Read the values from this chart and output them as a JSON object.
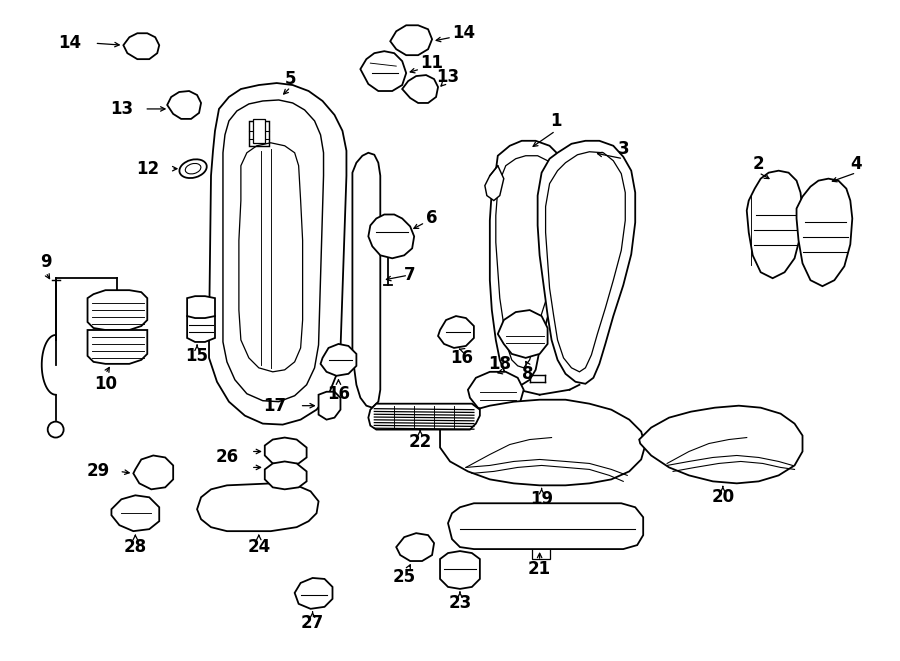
{
  "background_color": "#ffffff",
  "line_color": "#000000",
  "fig_width": 9.0,
  "fig_height": 6.61,
  "dpi": 100,
  "font_size": 11,
  "lw": 1.3
}
